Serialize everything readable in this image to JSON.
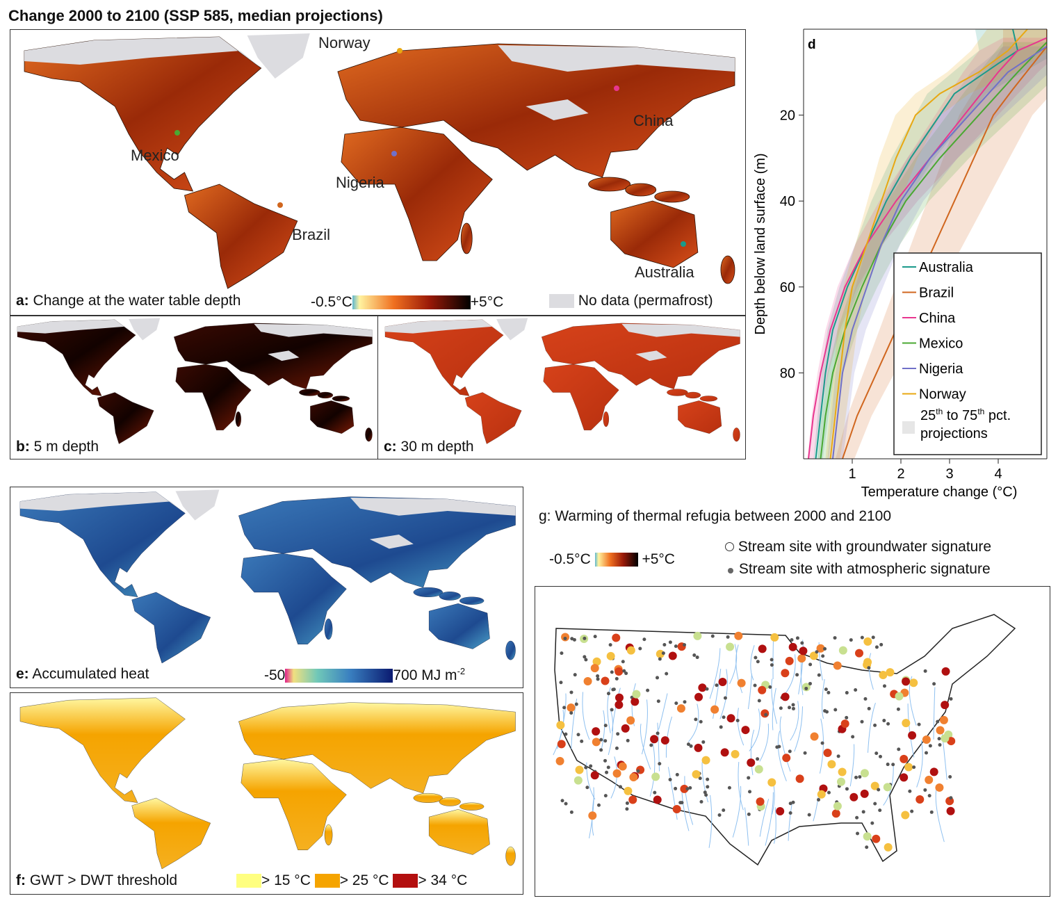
{
  "title": "Change 2000 to 2100 (SSP 585, median projections)",
  "panel_a": {
    "letter": "a:",
    "caption": "Change at the water table depth",
    "scale_min": "-0.5°C",
    "scale_max": "+5°C",
    "nodata": "No data (permafrost)",
    "countries": [
      "Norway",
      "China",
      "Mexico",
      "Nigeria",
      "Brazil",
      "Australia"
    ]
  },
  "panel_b": {
    "letter": "b:",
    "caption": "5 m depth"
  },
  "panel_c": {
    "letter": "c:",
    "caption": "30 m depth"
  },
  "panel_e": {
    "letter": "e:",
    "caption": "Accumulated heat",
    "scale_min": "-50",
    "scale_max": "700 MJ m",
    "unit_sup": "-2"
  },
  "panel_f": {
    "letter": "f:",
    "caption": "GWT > DWT threshold",
    "classes": [
      "> 15 °C",
      "> 25 °C",
      "> 34 °C"
    ],
    "class_colors": [
      "#ffff80",
      "#f5a400",
      "#b30f0f"
    ]
  },
  "panel_g": {
    "title": "g: Warming of thermal refugia between 2000 and 2100",
    "scale_min": "-0.5°C",
    "scale_max": "+5°C",
    "legend": [
      "Stream site with groundwater signature",
      "Stream site with atmospheric signature"
    ]
  },
  "chart_data": {
    "type": "line",
    "panel": "d",
    "xlabel": "Temperature change (°C)",
    "ylabel": "Depth below land surface (m)",
    "xlim": [
      0,
      5
    ],
    "ylim": [
      0,
      100
    ],
    "y_inverted": true,
    "xticks": [
      1,
      2,
      3,
      4
    ],
    "yticks": [
      20,
      40,
      60,
      80
    ],
    "legend_position": "bottom-right",
    "band_label": [
      "25",
      "th",
      " to 75",
      "th",
      " pct.",
      "projections"
    ],
    "series": [
      {
        "name": "Australia",
        "color": "#1a9a8a",
        "depth": [
          0,
          5,
          8,
          15,
          20,
          30,
          40,
          50,
          60,
          70,
          80,
          90,
          100
        ],
        "temp": [
          4.3,
          4.4,
          4.0,
          3.1,
          2.8,
          2.2,
          1.7,
          1.3,
          0.9,
          0.6,
          0.45,
          0.35,
          0.25
        ]
      },
      {
        "name": "Brazil",
        "color": "#d0661e",
        "depth": [
          0,
          4,
          14,
          20,
          30,
          40,
          50,
          60,
          70,
          80,
          90,
          100
        ],
        "temp": [
          5,
          5,
          4.3,
          3.9,
          3.5,
          3.1,
          2.7,
          2.3,
          1.9,
          1.5,
          1.1,
          0.8
        ]
      },
      {
        "name": "China",
        "color": "#e8368f",
        "depth": [
          2,
          5,
          10,
          20,
          30,
          40,
          50,
          60,
          70,
          80,
          90,
          100
        ],
        "temp": [
          5,
          4.4,
          4.0,
          3.3,
          2.6,
          1.9,
          1.3,
          0.85,
          0.55,
          0.35,
          0.2,
          0.1
        ]
      },
      {
        "name": "Mexico",
        "color": "#4aa832",
        "depth": [
          3,
          10,
          20,
          30,
          40,
          50,
          60,
          70,
          80,
          90,
          100
        ],
        "temp": [
          5,
          4.4,
          3.6,
          2.8,
          2.1,
          1.6,
          1.2,
          0.85,
          0.6,
          0.45,
          0.35
        ]
      },
      {
        "name": "Nigeria",
        "color": "#7070c8",
        "depth": [
          4,
          10,
          20,
          30,
          40,
          50,
          60,
          70,
          80,
          90,
          100
        ],
        "temp": [
          5,
          4.2,
          3.4,
          2.6,
          2.0,
          1.6,
          1.3,
          1.0,
          0.8,
          0.7,
          0.6
        ]
      },
      {
        "name": "Norway",
        "color": "#e8a812",
        "depth": [
          0,
          5,
          10,
          15,
          20,
          30,
          40,
          50,
          60,
          70,
          80,
          90,
          100
        ],
        "temp": [
          4.6,
          4.2,
          3.6,
          2.8,
          2.3,
          1.9,
          1.6,
          1.3,
          1.0,
          0.85,
          0.75,
          0.65,
          0.55
        ]
      }
    ]
  }
}
